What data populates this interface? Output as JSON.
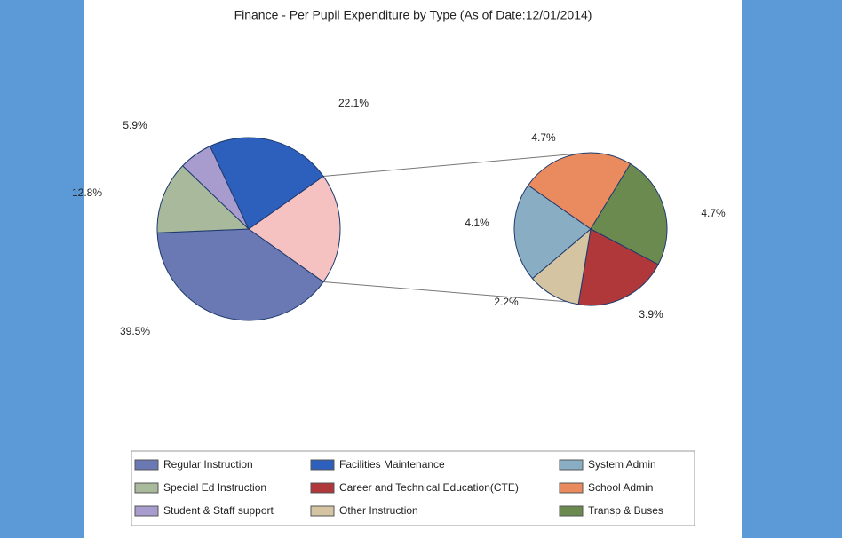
{
  "chart_data": {
    "type": "pie",
    "title": "Finance - Per Pupil Expenditure by Type (As of Date:12/01/2014)",
    "other_color": "#f6c1c1",
    "main_pie": [
      {
        "name": "Regular Instruction",
        "color": "#6a78b4",
        "value": 39.5,
        "value_label": "39.5%"
      },
      {
        "name": "Special Ed Instruction",
        "color": "#a9b99c",
        "value": 12.8,
        "value_label": "12.8%"
      },
      {
        "name": "Student & Staff support",
        "color": "#a89ccf",
        "value": 5.9,
        "value_label": "5.9%"
      },
      {
        "name": "Facilities Maintenance",
        "color": "#2d5fbd",
        "value": 22.1,
        "value_label": "22.1%"
      }
    ],
    "secondary_pie": [
      {
        "name": "School Admin",
        "color": "#e98b5e",
        "value": 4.7,
        "value_label": "4.7%"
      },
      {
        "name": "Transp & Buses",
        "color": "#6a8a4f",
        "value": 4.7,
        "value_label": "4.7%"
      },
      {
        "name": "Career and Technical Education(CTE)",
        "color": "#b0383b",
        "value": 3.9,
        "value_label": "3.9%"
      },
      {
        "name": "Other Instruction",
        "color": "#d5c4a1",
        "value": 2.2,
        "value_label": "2.2%"
      },
      {
        "name": "System Admin",
        "color": "#89aec4",
        "value": 4.1,
        "value_label": "4.1%"
      }
    ]
  }
}
